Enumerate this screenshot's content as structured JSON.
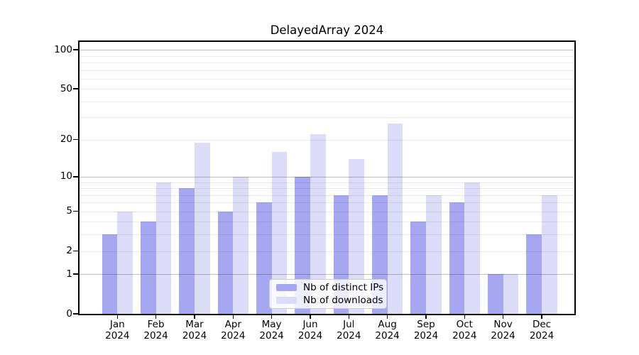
{
  "title": "DelayedArray 2024",
  "chart_data": {
    "type": "bar",
    "title": "DelayedArray 2024",
    "categories": [
      "Jan",
      "Feb",
      "Mar",
      "Apr",
      "May",
      "Jun",
      "Jul",
      "Aug",
      "Sep",
      "Oct",
      "Nov",
      "Dec"
    ],
    "category_year": "2024",
    "series": [
      {
        "name": "Nb of distinct IPs",
        "color": "#a7a6f1",
        "values": [
          3,
          4,
          8,
          5,
          6,
          10,
          7,
          7,
          4,
          6,
          1,
          3
        ]
      },
      {
        "name": "Nb of downloads",
        "color": "#dcdbf8",
        "values": [
          5,
          9,
          19,
          10,
          16,
          22,
          14,
          27,
          7,
          9,
          1,
          7
        ]
      }
    ],
    "y_axis": {
      "scale": "log10(1+y)",
      "range": [
        0,
        100
      ],
      "ticks": [
        0,
        1,
        2,
        5,
        10,
        20,
        50,
        100
      ],
      "minor_gridlines": [
        3,
        4,
        6,
        7,
        8,
        9,
        30,
        40,
        60,
        70,
        80,
        90
      ],
      "decade_gridlines": [
        1,
        10,
        100
      ]
    },
    "grid": true,
    "legend_position": "lower center"
  },
  "colors": {
    "background": "#ffffff",
    "frame": "#000000",
    "grid_minor": "rgba(0,0,0,0.08)",
    "grid_decade": "rgba(0,0,0,0.25)",
    "text": "#000000"
  }
}
